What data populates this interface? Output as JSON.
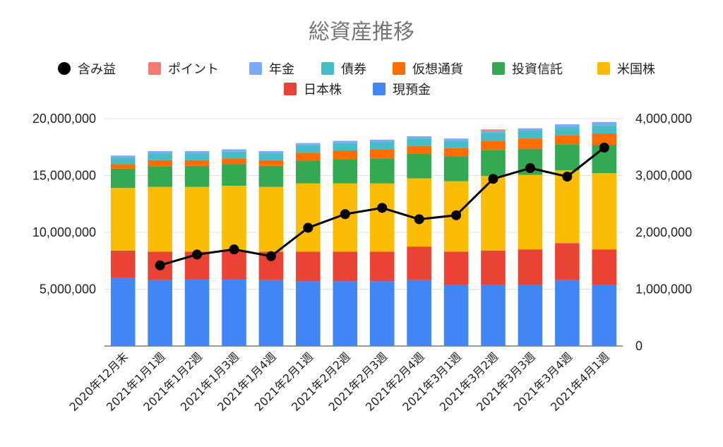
{
  "chart_data": {
    "type": "bar",
    "title": "総資産推移",
    "stacked": true,
    "legend_position": "top",
    "grid": true,
    "categories": [
      "2020年12月末",
      "2021年1月1週",
      "2021年1月2週",
      "2021年1月3週",
      "2021年1月4週",
      "2021年2月1週",
      "2021年2月2週",
      "2021年2月3週",
      "2021年2月4週",
      "2021年3月1週",
      "2021年3月2週",
      "2021年3月3週",
      "2021年3月4週",
      "2021年4月1週"
    ],
    "y_left": {
      "min": 0,
      "max": 20000000,
      "ticks": [
        "5,000,000",
        "10,000,000",
        "15,000,000",
        "20,000,000"
      ]
    },
    "y_right": {
      "min": 0,
      "max": 4000000,
      "ticks": [
        "0",
        "1,000,000",
        "2,000,000",
        "3,000,000",
        "4,000,000"
      ]
    },
    "series": [
      {
        "name": "現預金",
        "color": "#4285f4",
        "values": [
          6000000,
          5800000,
          5900000,
          5900000,
          5800000,
          5700000,
          5700000,
          5700000,
          5800000,
          5400000,
          5400000,
          5400000,
          5800000,
          5400000
        ]
      },
      {
        "name": "日本株",
        "color": "#ea4335",
        "values": [
          2400000,
          2500000,
          2400000,
          2500000,
          2500000,
          2600000,
          2600000,
          2600000,
          2950000,
          2900000,
          3000000,
          3100000,
          3250000,
          3100000
        ]
      },
      {
        "name": "米国株",
        "color": "#fbbc04",
        "values": [
          5500000,
          5700000,
          5700000,
          5700000,
          5700000,
          6000000,
          6000000,
          6000000,
          6000000,
          6200000,
          6550000,
          6550000,
          6400000,
          6700000
        ]
      },
      {
        "name": "投資信託",
        "color": "#34a853",
        "values": [
          1700000,
          1800000,
          1850000,
          1900000,
          1850000,
          2000000,
          2100000,
          2200000,
          2150000,
          2200000,
          2300000,
          2300000,
          2300000,
          2500000
        ]
      },
      {
        "name": "仮想通貨",
        "color": "#ff6d01",
        "values": [
          400000,
          550000,
          500000,
          500000,
          500000,
          700000,
          800000,
          800000,
          700000,
          700000,
          800000,
          900000,
          800000,
          1000000
        ]
      },
      {
        "name": "債券",
        "color": "#46bdc6",
        "values": [
          550000,
          600000,
          600000,
          600000,
          600000,
          650000,
          650000,
          650000,
          650000,
          650000,
          700000,
          700000,
          700000,
          700000
        ]
      },
      {
        "name": "年金",
        "color": "#7baaf7",
        "values": [
          200000,
          200000,
          200000,
          200000,
          200000,
          200000,
          200000,
          200000,
          200000,
          200000,
          200000,
          200000,
          250000,
          300000
        ]
      },
      {
        "name": "ポイント",
        "color": "#f07b72",
        "values": [
          0,
          0,
          0,
          0,
          0,
          0,
          0,
          0,
          0,
          0,
          100000,
          0,
          0,
          0
        ]
      }
    ],
    "line_series": {
      "name": "含み益",
      "color": "#000000",
      "axis": "right",
      "values": [
        null,
        1420000,
        1610000,
        1700000,
        1580000,
        2080000,
        2320000,
        2430000,
        2230000,
        2300000,
        2940000,
        3130000,
        2980000,
        3490000
      ]
    },
    "legend_order": [
      "含み益",
      "ポイント",
      "年金",
      "債券",
      "仮想通貨",
      "投資信託",
      "米国株",
      "日本株",
      "現預金"
    ]
  }
}
